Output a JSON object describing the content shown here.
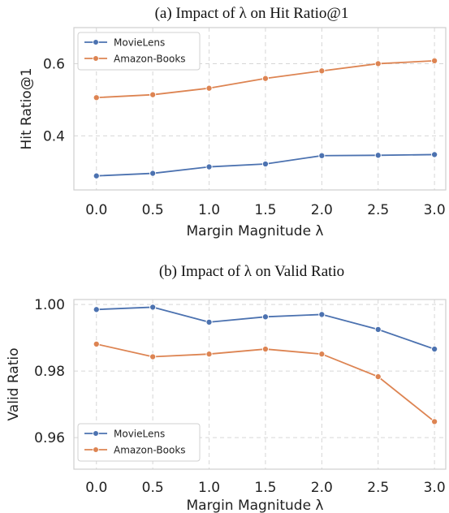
{
  "chart_data": [
    {
      "type": "line",
      "title": "(a) Impact of λ on Hit Ratio@1",
      "xlabel": "Margin Magnitude λ",
      "ylabel": "Hit Ratio@1",
      "x": [
        0.0,
        0.5,
        1.0,
        1.5,
        2.0,
        2.5,
        3.0
      ],
      "xticks": [
        "0.0",
        "0.5",
        "1.0",
        "1.5",
        "2.0",
        "2.5",
        "3.0"
      ],
      "yticks": [
        0.4,
        0.6
      ],
      "ytick_labels": [
        "0.4",
        "0.6"
      ],
      "xlim": [
        -0.2,
        3.1
      ],
      "ylim": [
        0.25,
        0.7
      ],
      "grid": true,
      "legend": "top-left",
      "series": [
        {
          "name": "MovieLens",
          "color": "#4c72b0",
          "values": [
            0.289,
            0.296,
            0.314,
            0.322,
            0.345,
            0.346,
            0.348
          ]
        },
        {
          "name": "Amazon-Books",
          "color": "#dd8452",
          "values": [
            0.506,
            0.514,
            0.532,
            0.559,
            0.58,
            0.6,
            0.608
          ]
        }
      ]
    },
    {
      "type": "line",
      "title": "(b) Impact of λ on Valid Ratio",
      "xlabel": "Margin Magnitude λ",
      "ylabel": "Valid Ratio",
      "x": [
        0.0,
        0.5,
        1.0,
        1.5,
        2.0,
        2.5,
        3.0
      ],
      "xticks": [
        "0.0",
        "0.5",
        "1.0",
        "1.5",
        "2.0",
        "2.5",
        "3.0"
      ],
      "yticks": [
        0.96,
        0.98,
        1.0
      ],
      "ytick_labels": [
        "0.96",
        "0.98",
        "1.00"
      ],
      "xlim": [
        -0.2,
        3.1
      ],
      "ylim": [
        0.9505,
        1.0015
      ],
      "grid": true,
      "legend": "bottom-left",
      "series": [
        {
          "name": "MovieLens",
          "color": "#4c72b0",
          "values": [
            0.9985,
            0.9992,
            0.9947,
            0.9963,
            0.997,
            0.9925,
            0.9866
          ]
        },
        {
          "name": "Amazon-Books",
          "color": "#dd8452",
          "values": [
            0.9881,
            0.9843,
            0.9851,
            0.9866,
            0.9851,
            0.9783,
            0.9648
          ]
        }
      ]
    }
  ]
}
